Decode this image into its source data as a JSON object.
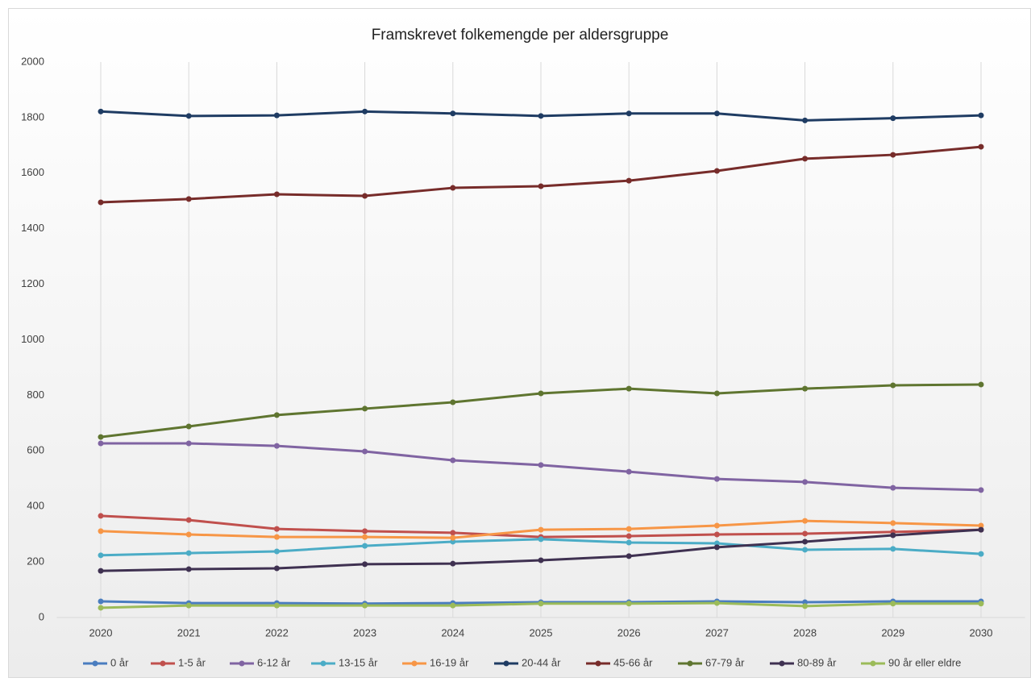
{
  "chart_data": {
    "type": "line",
    "title": "Framskrevet folkemengde per aldersgruppe",
    "categories": [
      "2020",
      "2021",
      "2022",
      "2023",
      "2024",
      "2025",
      "2026",
      "2027",
      "2028",
      "2029",
      "2030"
    ],
    "ylim": [
      0,
      2000
    ],
    "yticks": [
      0,
      200,
      400,
      600,
      800,
      1000,
      1200,
      1400,
      1600,
      1800,
      2000
    ],
    "grid": "vertical",
    "legend": "bottom",
    "series": [
      {
        "name": "0 år",
        "color": "#4a7dbf",
        "values": [
          58,
          52,
          52,
          50,
          52,
          55,
          55,
          58,
          55,
          58,
          58
        ]
      },
      {
        "name": "1-5 år",
        "color": "#c0504d",
        "values": [
          366,
          351,
          319,
          311,
          305,
          290,
          293,
          299,
          302,
          308,
          316
        ]
      },
      {
        "name": "6-12 år",
        "color": "#8064a2",
        "values": [
          627,
          627,
          618,
          598,
          566,
          549,
          525,
          499,
          488,
          467,
          459
        ]
      },
      {
        "name": "13-15 år",
        "color": "#4bacc6",
        "values": [
          224,
          232,
          238,
          258,
          273,
          282,
          270,
          267,
          244,
          247,
          229
        ]
      },
      {
        "name": "16-19 år",
        "color": "#f79646",
        "values": [
          311,
          299,
          290,
          290,
          287,
          316,
          319,
          331,
          348,
          340,
          331
        ]
      },
      {
        "name": "20-44 år",
        "color": "#1f3c63",
        "values": [
          1822,
          1806,
          1808,
          1822,
          1815,
          1806,
          1815,
          1815,
          1790,
          1798,
          1808
        ]
      },
      {
        "name": "45-66 år",
        "color": "#772c2a",
        "values": [
          1495,
          1507,
          1524,
          1518,
          1547,
          1553,
          1573,
          1608,
          1652,
          1666,
          1695
        ]
      },
      {
        "name": "67-79 år",
        "color": "#5f7530",
        "values": [
          650,
          688,
          729,
          752,
          775,
          807,
          824,
          807,
          824,
          836,
          839
        ]
      },
      {
        "name": "80-89 år",
        "color": "#3f3151",
        "values": [
          168,
          174,
          177,
          192,
          194,
          206,
          221,
          253,
          273,
          296,
          316
        ]
      },
      {
        "name": "90 år eller eldre",
        "color": "#9bbb59",
        "values": [
          35,
          43,
          43,
          43,
          43,
          50,
          50,
          52,
          41,
          50,
          50
        ]
      }
    ]
  }
}
